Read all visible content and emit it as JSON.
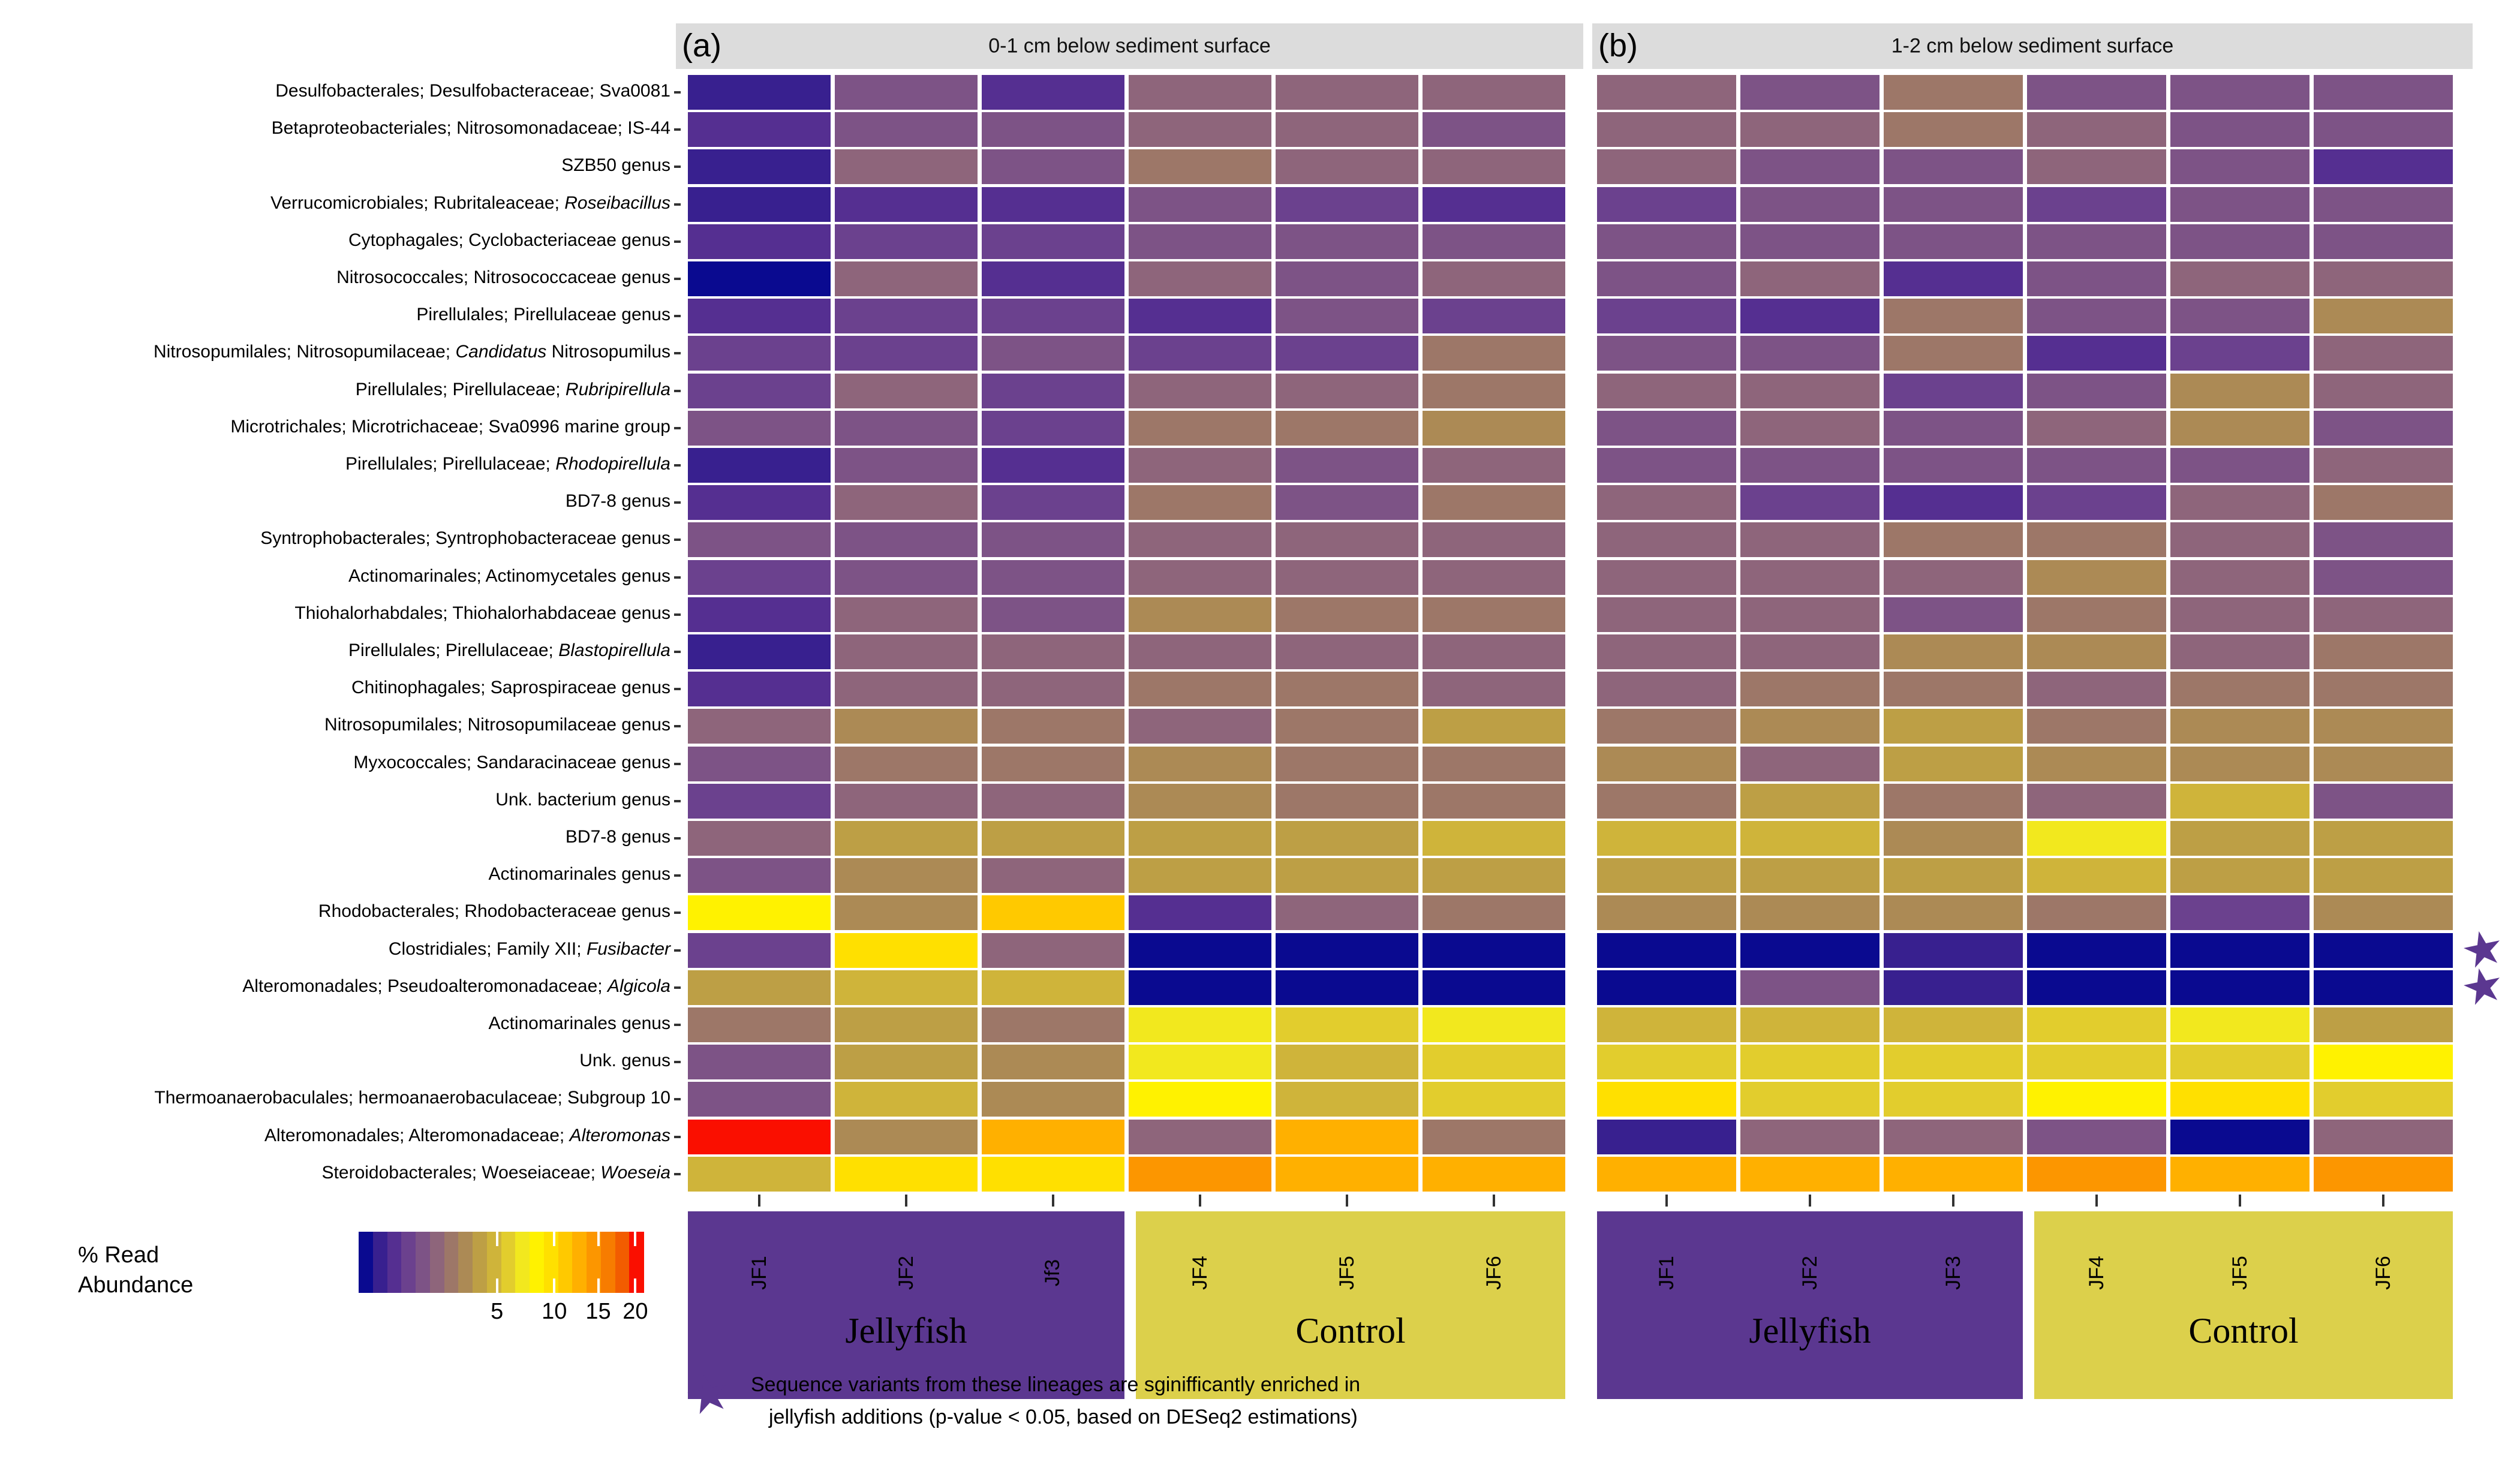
{
  "chart_data": {
    "type": "heatmap",
    "value_scale": {
      "transform": "sqrt",
      "domain_max": 21.2,
      "units": "% read abundance"
    },
    "palette": [
      "#0a0a90",
      "#38208f",
      "#552f91",
      "#6b418e",
      "#7d5386",
      "#8e657b",
      "#9d7768",
      "#ac8a55",
      "#bd9f45",
      "#cfb43a",
      "#e2cd2d",
      "#f2e81e",
      "#fff200",
      "#ffe000",
      "#ffc900",
      "#ffb000",
      "#fc9600",
      "#f77c00",
      "#f25c00",
      "#fa0f00"
    ],
    "rows": [
      {
        "segments": [
          {
            "t": "Desulfobacterales; Desulfobacteraceae; Sva0081",
            "i": false
          }
        ],
        "significant": false
      },
      {
        "segments": [
          {
            "t": "Betaproteobacteriales; Nitrosomonadaceae; IS-44",
            "i": false
          }
        ],
        "significant": false
      },
      {
        "segments": [
          {
            "t": "SZB50 genus",
            "i": false
          }
        ],
        "significant": false
      },
      {
        "segments": [
          {
            "t": "Verrucomicrobiales; Rubritaleaceae; ",
            "i": false
          },
          {
            "t": "Roseibacillus",
            "i": true
          }
        ],
        "significant": false
      },
      {
        "segments": [
          {
            "t": "Cytophagales; Cyclobacteriaceae genus",
            "i": false
          }
        ],
        "significant": false
      },
      {
        "segments": [
          {
            "t": "Nitrosococcales; Nitrosococcaceae genus",
            "i": false
          }
        ],
        "significant": false
      },
      {
        "segments": [
          {
            "t": "Pirellulales; Pirellulaceae genus",
            "i": false
          }
        ],
        "significant": false
      },
      {
        "segments": [
          {
            "t": "Nitrosopumilales; Nitrosopumilaceae; ",
            "i": false
          },
          {
            "t": "Candidatus",
            "i": true
          },
          {
            "t": " Nitrosopumilus",
            "i": false
          }
        ],
        "significant": false
      },
      {
        "segments": [
          {
            "t": "Pirellulales; Pirellulaceae; ",
            "i": false
          },
          {
            "t": "Rubripirellula",
            "i": true
          }
        ],
        "significant": false
      },
      {
        "segments": [
          {
            "t": "Microtrichales; Microtrichaceae; Sva0996 marine group",
            "i": false
          }
        ],
        "significant": false
      },
      {
        "segments": [
          {
            "t": "Pirellulales; Pirellulaceae; ",
            "i": false
          },
          {
            "t": "Rhodopirellula",
            "i": true
          }
        ],
        "significant": false
      },
      {
        "segments": [
          {
            "t": "BD7-8 genus",
            "i": false
          }
        ],
        "significant": false
      },
      {
        "segments": [
          {
            "t": "Syntrophobacterales; Syntrophobacteraceae genus",
            "i": false
          }
        ],
        "significant": false
      },
      {
        "segments": [
          {
            "t": "Actinomarinales; Actinomycetales genus",
            "i": false
          }
        ],
        "significant": false
      },
      {
        "segments": [
          {
            "t": "Thiohalorhabdales; Thiohalorhabdaceae genus",
            "i": false
          }
        ],
        "significant": false
      },
      {
        "segments": [
          {
            "t": "Pirellulales; Pirellulaceae; ",
            "i": false
          },
          {
            "t": "Blastopirellula",
            "i": true
          }
        ],
        "significant": false
      },
      {
        "segments": [
          {
            "t": "Chitinophagales; Saprospiraceae genus",
            "i": false
          }
        ],
        "significant": false
      },
      {
        "segments": [
          {
            "t": "Nitrosopumilales; Nitrosopumilaceae genus",
            "i": false
          }
        ],
        "significant": false
      },
      {
        "segments": [
          {
            "t": "Myxococcales; Sandaracinaceae genus",
            "i": false
          }
        ],
        "significant": false
      },
      {
        "segments": [
          {
            "t": "Unk. bacterium genus",
            "i": false
          }
        ],
        "significant": false
      },
      {
        "segments": [
          {
            "t": "BD7-8 genus",
            "i": false
          }
        ],
        "significant": false
      },
      {
        "segments": [
          {
            "t": "Actinomarinales genus",
            "i": false
          }
        ],
        "significant": false
      },
      {
        "segments": [
          {
            "t": "Rhodobacterales; Rhodobacteraceae genus",
            "i": false
          }
        ],
        "significant": false
      },
      {
        "segments": [
          {
            "t": "Clostridiales; Family XII; ",
            "i": false
          },
          {
            "t": "Fusibacter",
            "i": true
          }
        ],
        "significant": true
      },
      {
        "segments": [
          {
            "t": "Alteromonadales; Pseudoalteromonadaceae; ",
            "i": false
          },
          {
            "t": "Algicola",
            "i": true
          }
        ],
        "significant": true
      },
      {
        "segments": [
          {
            "t": "Actinomarinales genus ",
            "i": false
          }
        ],
        "significant": false
      },
      {
        "segments": [
          {
            "t": "Unk. genus",
            "i": false
          }
        ],
        "significant": false
      },
      {
        "segments": [
          {
            "t": "Thermoanaerobaculales; hermoanaerobaculaceae; Subgroup 10",
            "i": false
          }
        ],
        "significant": false
      },
      {
        "segments": [
          {
            "t": "Alteromonadales; Alteromonadaceae; ",
            "i": false
          },
          {
            "t": "Alteromonas",
            "i": true
          }
        ],
        "significant": false
      },
      {
        "segments": [
          {
            "t": "Steroidobacterales; Woeseiaceae; ",
            "i": false
          },
          {
            "t": "Woeseia",
            "i": true
          }
        ],
        "significant": false
      }
    ],
    "groups": [
      {
        "label": "Jellyfish",
        "color": "#5b3790"
      },
      {
        "label": "Control",
        "color": "#dcd04b"
      }
    ],
    "panels": [
      {
        "tag": "(a)",
        "title": "0-1 cm below sediment surface",
        "columns": [
          "JF1",
          "JF2",
          "Jf3",
          "JF4",
          "JF5",
          "JF6"
        ],
        "values": [
          [
            0.12,
            1.07,
            0.33,
            1.6,
            1.6,
            1.6
          ],
          [
            0.33,
            1.07,
            1.07,
            1.6,
            1.6,
            1.07
          ],
          [
            0.12,
            1.6,
            1.07,
            2.24,
            1.6,
            1.6
          ],
          [
            0.12,
            0.33,
            0.33,
            1.07,
            0.65,
            0.33
          ],
          [
            0.33,
            0.65,
            0.65,
            1.07,
            1.07,
            1.07
          ],
          [
            0.01,
            1.6,
            0.33,
            1.6,
            1.07,
            1.6
          ],
          [
            0.33,
            0.65,
            0.65,
            0.33,
            1.07,
            0.65
          ],
          [
            0.65,
            0.65,
            1.07,
            0.65,
            0.65,
            2.24
          ],
          [
            0.65,
            1.6,
            0.65,
            1.6,
            1.6,
            2.24
          ],
          [
            1.07,
            1.07,
            0.65,
            2.24,
            2.24,
            2.98
          ],
          [
            0.12,
            1.07,
            0.33,
            1.6,
            1.07,
            1.6
          ],
          [
            0.33,
            1.6,
            0.65,
            2.24,
            1.07,
            2.24
          ],
          [
            1.07,
            1.07,
            1.07,
            1.6,
            1.6,
            1.6
          ],
          [
            0.65,
            1.07,
            1.07,
            1.6,
            1.6,
            1.6
          ],
          [
            0.33,
            1.6,
            1.07,
            2.98,
            2.24,
            2.24
          ],
          [
            0.12,
            1.6,
            1.6,
            1.6,
            1.6,
            1.6
          ],
          [
            0.33,
            1.6,
            1.6,
            2.24,
            2.24,
            1.6
          ],
          [
            1.6,
            2.98,
            2.24,
            1.6,
            2.24,
            3.83
          ],
          [
            1.07,
            2.24,
            2.24,
            2.98,
            2.24,
            2.24
          ],
          [
            0.65,
            1.6,
            1.6,
            2.98,
            2.24,
            2.24
          ],
          [
            1.6,
            3.83,
            3.83,
            3.83,
            3.83,
            4.78
          ],
          [
            1.07,
            2.98,
            1.6,
            3.83,
            3.83,
            3.83
          ],
          [
            8.3,
            2.98,
            11.1,
            0.33,
            1.6,
            2.24
          ],
          [
            0.65,
            9.7,
            1.6,
            0.01,
            0.01,
            0.01
          ],
          [
            3.83,
            4.78,
            4.78,
            0.01,
            0.01,
            0.01
          ],
          [
            2.24,
            3.83,
            2.24,
            7.0,
            5.84,
            7.0
          ],
          [
            1.07,
            3.83,
            2.98,
            7.0,
            4.78,
            5.84
          ],
          [
            1.07,
            4.78,
            2.98,
            8.3,
            4.78,
            5.84
          ],
          [
            20.1,
            2.98,
            12.7,
            1.6,
            12.7,
            2.24
          ],
          [
            4.78,
            9.7,
            9.7,
            14.4,
            12.7,
            12.7
          ]
        ]
      },
      {
        "tag": "(b)",
        "title": "1-2 cm below sediment surface",
        "columns": [
          "JF1",
          "JF2",
          "JF3",
          "JF4",
          "JF5",
          "JF6"
        ],
        "values": [
          [
            1.6,
            1.07,
            2.24,
            1.07,
            1.07,
            1.07
          ],
          [
            1.6,
            1.6,
            2.24,
            1.6,
            1.07,
            1.07
          ],
          [
            1.6,
            1.07,
            1.07,
            1.6,
            1.07,
            0.33
          ],
          [
            0.65,
            1.07,
            1.07,
            0.65,
            1.07,
            1.07
          ],
          [
            1.07,
            1.07,
            1.07,
            1.07,
            1.07,
            1.07
          ],
          [
            1.07,
            1.6,
            0.33,
            1.07,
            1.6,
            1.6
          ],
          [
            0.65,
            0.33,
            2.24,
            1.07,
            1.07,
            2.98
          ],
          [
            1.07,
            1.07,
            2.24,
            0.33,
            0.65,
            1.6
          ],
          [
            1.6,
            1.6,
            0.65,
            1.07,
            2.98,
            1.6
          ],
          [
            1.07,
            1.6,
            1.07,
            1.6,
            2.98,
            1.07
          ],
          [
            1.07,
            1.07,
            1.07,
            1.07,
            1.07,
            1.6
          ],
          [
            1.6,
            0.65,
            0.33,
            0.65,
            1.6,
            2.24
          ],
          [
            1.6,
            1.6,
            2.24,
            2.24,
            1.6,
            1.07
          ],
          [
            1.6,
            1.6,
            1.6,
            2.98,
            1.6,
            1.07
          ],
          [
            1.6,
            1.6,
            1.07,
            2.24,
            1.6,
            1.6
          ],
          [
            1.6,
            1.6,
            2.98,
            2.98,
            1.6,
            2.24
          ],
          [
            1.6,
            2.24,
            2.24,
            1.6,
            2.24,
            2.24
          ],
          [
            2.24,
            2.98,
            3.83,
            2.24,
            2.98,
            2.98
          ],
          [
            2.98,
            1.6,
            3.83,
            2.98,
            2.98,
            2.98
          ],
          [
            2.24,
            3.83,
            2.24,
            1.6,
            4.78,
            1.07
          ],
          [
            4.78,
            4.78,
            2.98,
            7.0,
            3.83,
            3.83
          ],
          [
            3.83,
            3.83,
            3.83,
            4.78,
            3.83,
            3.83
          ],
          [
            2.98,
            2.98,
            2.98,
            2.24,
            0.65,
            2.98
          ],
          [
            0.01,
            0.01,
            0.12,
            0.01,
            0.01,
            0.01
          ],
          [
            0.01,
            1.07,
            0.12,
            0.01,
            0.01,
            0.01
          ],
          [
            4.78,
            4.78,
            4.78,
            5.84,
            7.0,
            3.83
          ],
          [
            5.84,
            5.84,
            5.84,
            5.84,
            5.84,
            8.3
          ],
          [
            9.7,
            5.84,
            5.84,
            8.3,
            9.7,
            5.84
          ],
          [
            0.12,
            1.6,
            1.6,
            1.07,
            0.01,
            1.6
          ],
          [
            12.7,
            12.7,
            12.7,
            14.4,
            12.7,
            14.4
          ]
        ]
      }
    ],
    "legend": {
      "title_line1": "% Read",
      "title_line2": "Abundance",
      "ticks": [
        5,
        10,
        15,
        20
      ]
    },
    "footnote": {
      "star_glyph": "★",
      "star_color": "#5b3790",
      "line1": "Sequence variants from these lineages are sginifficantly enriched in",
      "line2": "jellyfish additions (p-value < 0.05, based on DESeq2 estimations)"
    }
  }
}
